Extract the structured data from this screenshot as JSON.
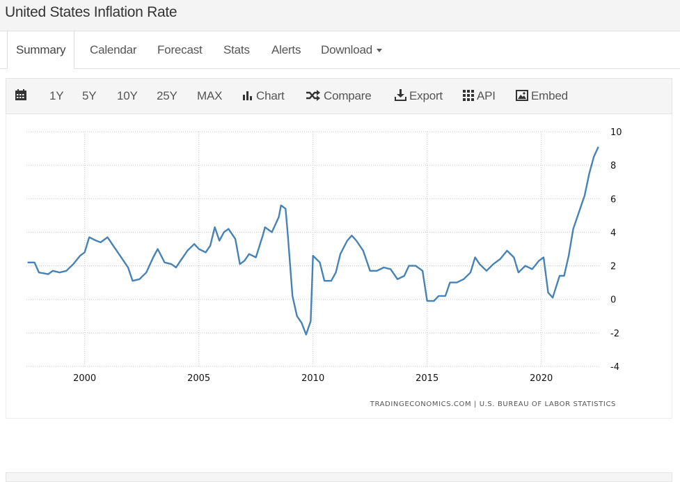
{
  "header": {
    "title": "United States Inflation Rate"
  },
  "tabs": [
    {
      "label": "Summary",
      "active": true
    },
    {
      "label": "Calendar"
    },
    {
      "label": "Forecast"
    },
    {
      "label": "Stats"
    },
    {
      "label": "Alerts"
    },
    {
      "label": "Download",
      "dropdown": true
    }
  ],
  "toolbar": {
    "calendar_icon": "calendar-icon",
    "ranges": [
      "1Y",
      "5Y",
      "10Y",
      "25Y",
      "MAX"
    ],
    "chart_label": "Chart",
    "compare_label": "Compare",
    "export_label": "Export",
    "api_label": "API",
    "embed_label": "Embed"
  },
  "credit": "TRADINGECONOMICS.COM  |  U.S. BUREAU OF LABOR STATISTICS",
  "chart_data": {
    "type": "line",
    "title": "",
    "xlabel": "",
    "ylabel": "",
    "y_ticks": [
      10,
      8,
      6,
      4,
      2,
      0,
      -2,
      -4
    ],
    "x_ticks": [
      2000,
      2005,
      2010,
      2015,
      2020
    ],
    "ylim": [
      -4,
      10
    ],
    "xlim": [
      1997.45,
      2022.6
    ],
    "grid": true,
    "line_color": "#4682b4",
    "series": [
      {
        "x": [
          1997.5,
          1997.8,
          1998.0,
          1998.4,
          1998.6,
          1998.9,
          1999.2,
          1999.5,
          1999.8,
          2000.0,
          2000.2,
          2000.5,
          2000.7,
          2001.0,
          2001.2,
          2001.5,
          2001.9,
          2002.1,
          2002.4,
          2002.7,
          2003.0,
          2003.2,
          2003.5,
          2003.8,
          2004.0,
          2004.2,
          2004.5,
          2004.8,
          2005.0,
          2005.3,
          2005.5,
          2005.7,
          2005.9,
          2006.1,
          2006.3,
          2006.6,
          2006.8,
          2007.0,
          2007.2,
          2007.5,
          2007.8,
          2007.9,
          2008.2,
          2008.5,
          2008.6,
          2008.8,
          2008.9,
          2009.1,
          2009.3,
          2009.5,
          2009.7,
          2009.9,
          2010.0,
          2010.3,
          2010.5,
          2010.8,
          2011.0,
          2011.2,
          2011.5,
          2011.7,
          2011.9,
          2012.2,
          2012.5,
          2012.8,
          2013.1,
          2013.4,
          2013.7,
          2014.0,
          2014.2,
          2014.5,
          2014.8,
          2015.0,
          2015.3,
          2015.5,
          2015.8,
          2016.0,
          2016.3,
          2016.6,
          2016.9,
          2017.1,
          2017.3,
          2017.6,
          2017.9,
          2018.2,
          2018.5,
          2018.8,
          2019.0,
          2019.3,
          2019.6,
          2019.9,
          2020.1,
          2020.3,
          2020.5,
          2020.8,
          2021.0,
          2021.2,
          2021.4,
          2021.7,
          2021.9,
          2022.1,
          2022.3,
          2022.5
        ],
        "values": [
          2.2,
          2.2,
          1.6,
          1.5,
          1.7,
          1.6,
          1.7,
          2.1,
          2.6,
          2.8,
          3.7,
          3.5,
          3.4,
          3.7,
          3.3,
          2.7,
          1.9,
          1.1,
          1.2,
          1.6,
          2.5,
          3.0,
          2.2,
          2.1,
          1.9,
          2.3,
          2.9,
          3.3,
          3.0,
          2.8,
          3.2,
          4.3,
          3.5,
          4.0,
          4.2,
          3.6,
          2.1,
          2.3,
          2.7,
          2.5,
          3.8,
          4.3,
          4.0,
          4.9,
          5.6,
          5.4,
          3.8,
          0.2,
          -1.0,
          -1.4,
          -2.1,
          -1.3,
          2.6,
          2.2,
          1.1,
          1.1,
          1.6,
          2.7,
          3.5,
          3.8,
          3.5,
          2.9,
          1.7,
          1.7,
          1.9,
          1.8,
          1.2,
          1.4,
          2.0,
          2.0,
          1.7,
          -0.1,
          -0.1,
          0.2,
          0.2,
          1.0,
          1.0,
          1.2,
          1.6,
          2.5,
          2.1,
          1.7,
          2.1,
          2.4,
          2.9,
          2.5,
          1.6,
          2.0,
          1.8,
          2.3,
          2.5,
          0.4,
          0.1,
          1.4,
          1.4,
          2.6,
          4.2,
          5.4,
          6.2,
          7.5,
          8.5,
          9.1
        ]
      }
    ]
  }
}
